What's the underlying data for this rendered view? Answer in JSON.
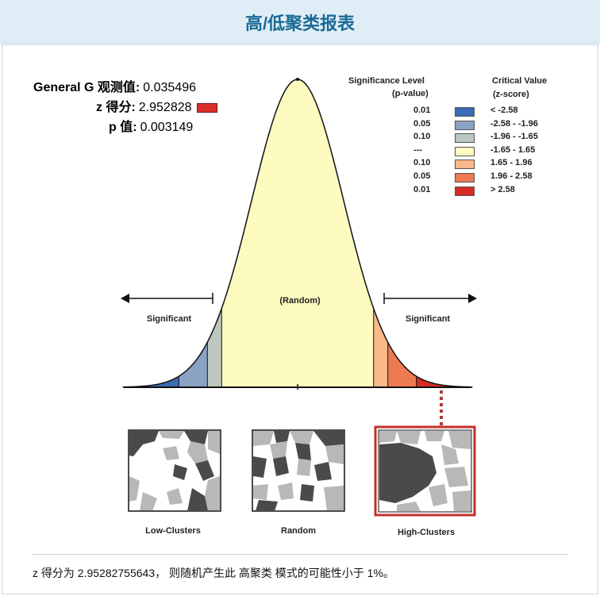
{
  "title": "高/低聚类报表",
  "stats": {
    "g_label": "General G 观测值:",
    "g_value": "0.035496",
    "z_label": "z 得分:",
    "z_value": "2.952828",
    "p_label": "p 值:",
    "p_value": "0.003149"
  },
  "legend": {
    "sig_header_1": "Significance Level",
    "sig_header_2": "(p-value)",
    "crit_header_1": "Critical Value",
    "crit_header_2": "(z-score)",
    "rows": [
      {
        "p": "0.01",
        "z": "< -2.58",
        "color": "#3a6bb4"
      },
      {
        "p": "0.05",
        "z": "-2.58 - -1.96",
        "color": "#8aa2c4"
      },
      {
        "p": "0.10",
        "z": "-1.96 - -1.65",
        "color": "#bcc7bf"
      },
      {
        "p": "---",
        "z": "-1.65 - 1.65",
        "color": "#fdfbc0"
      },
      {
        "p": "0.10",
        "z": "1.65 - 1.96",
        "color": "#f9b98a"
      },
      {
        "p": "0.05",
        "z": "1.96 - 2.58",
        "color": "#ee7a53"
      },
      {
        "p": "0.01",
        "z": "> 2.58",
        "color": "#d52b24"
      }
    ]
  },
  "curve": {
    "random_label": "(Random)",
    "significant_left": "Significant",
    "significant_right": "Significant"
  },
  "maps": {
    "low": "Low-Clusters",
    "random": "Random",
    "high": "High-Clusters"
  },
  "footer": "z 得分为 2.95282755643， 则随机产生此 高聚类 模式的可能性小于 1%。"
}
